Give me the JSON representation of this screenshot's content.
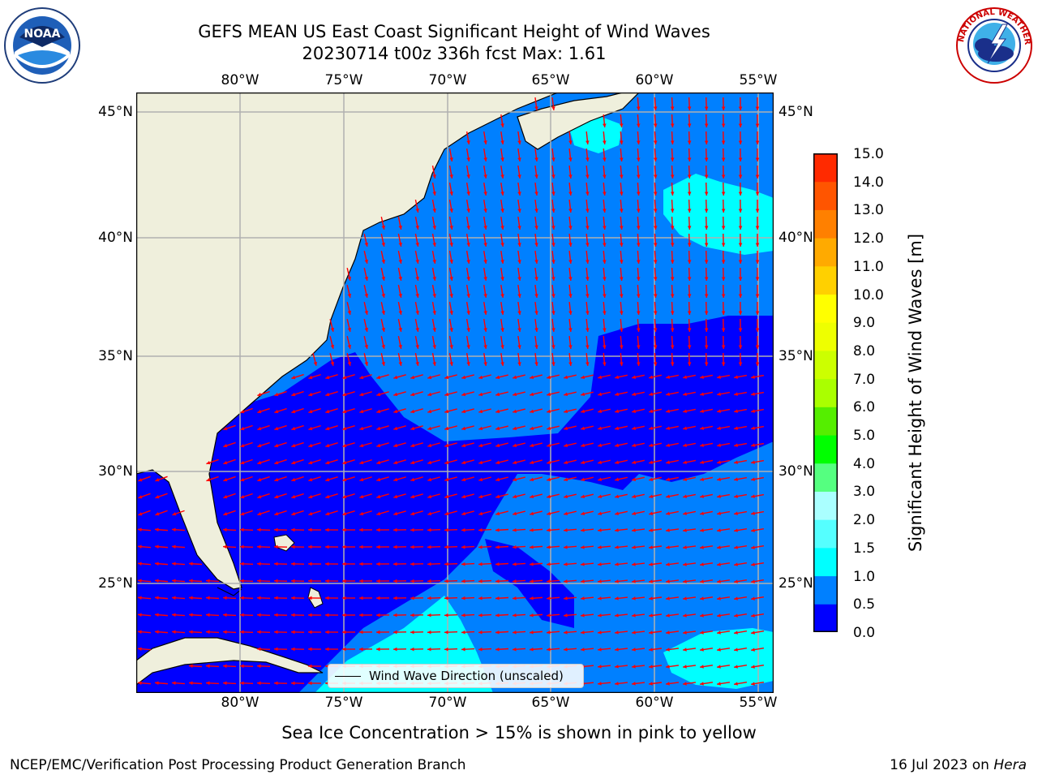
{
  "header": {
    "title_line1": "GEFS MEAN US East Coast Significant Height of Wind Waves",
    "title_line2": "20230714 t00z 336h fcst   Max: 1.61"
  },
  "logos": {
    "left": "NOAA",
    "right": "NATIONAL WEATHER SERVICE"
  },
  "map": {
    "lon_labels": [
      "80°W",
      "75°W",
      "70°W",
      "65°W",
      "60°W",
      "55°W"
    ],
    "lat_labels": [
      "45°N",
      "40°N",
      "35°N",
      "30°N",
      "25°N"
    ],
    "lon_range": [
      "85°W",
      "54.3°W"
    ],
    "lat_range": [
      "20.5°N",
      "45.8°N"
    ],
    "gridlines": true,
    "land_color": "#efefdc",
    "arrow_color": "#ff0000",
    "legend_label": "Wind Wave Direction (unscaled)",
    "legend_position": "bottom-center"
  },
  "colorbar": {
    "label": "Significant Height of Wind Waves [m]",
    "ticks": [
      "15.0",
      "14.0",
      "13.0",
      "12.0",
      "11.0",
      "10.0",
      "9.0",
      "8.0",
      "7.0",
      "6.0",
      "5.0",
      "4.0",
      "3.0",
      "2.0",
      "1.5",
      "1.0",
      "0.5",
      "0.0"
    ],
    "colors": [
      "#0000ff",
      "#0080ff",
      "#00ffff",
      "#55ffff",
      "#aaffff",
      "#55ff80",
      "#00ff00",
      "#55ee00",
      "#aaff00",
      "#ccff00",
      "#eeff00",
      "#ffff00",
      "#ffd000",
      "#ffaa00",
      "#ff8000",
      "#ff5500",
      "#ff2a00",
      "#ff0000"
    ]
  },
  "subtitle": "Sea Ice Concentration > 15% is shown in pink to yellow",
  "footer": {
    "left": "NCEP/EMC/Verification Post Processing Product Generation Branch",
    "right_prefix": "16 Jul 2023 on ",
    "right_host": "Hera"
  }
}
